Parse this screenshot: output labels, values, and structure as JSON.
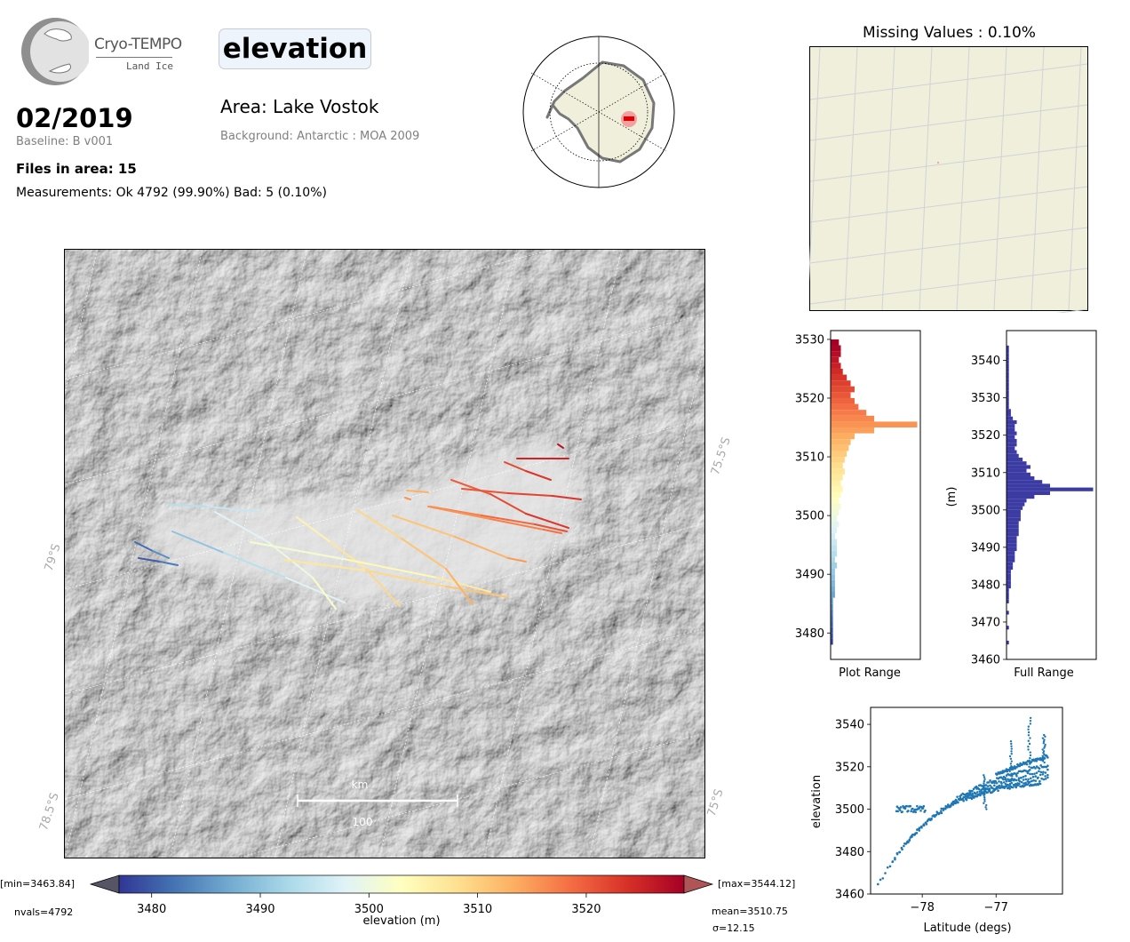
{
  "header": {
    "logo_name": "Cryo-TEMPO",
    "logo_sub": "Land Ice",
    "variable": "elevation",
    "date": "02/2019",
    "baseline": "Baseline: B v001",
    "files": "Files in area: 15",
    "measurements": "Measurements: Ok 4792 (99.90%) Bad: 5 (0.10%)",
    "area": "Area: Lake Vostok",
    "background": "Background: Antarctic : MOA 2009"
  },
  "colors": {
    "bar_hist": "#3b3ba3",
    "scatter": "#1f77b4",
    "land": "#efefdc",
    "grid": "#d0d0d0"
  },
  "chart_data": [
    {
      "type": "map",
      "name": "main-map",
      "lat_labels": [
        "79°S",
        "78.5°S"
      ],
      "lon_labels": [
        "75.5°S",
        "75°S"
      ],
      "scalebar": {
        "unit": "km",
        "length": "100"
      },
      "tracks_elevation_range": [
        3480,
        3528
      ]
    },
    {
      "type": "colorbar",
      "xlabel": "elevation (m)",
      "ticks": [
        3480,
        3490,
        3500,
        3510,
        3520
      ],
      "range": [
        3477,
        3529
      ],
      "min_label": "[min=3463.84]",
      "max_label": "[max=3544.12]",
      "nvals": "nvals=4792",
      "mean": "mean=3510.75",
      "sigma": "σ=12.15"
    },
    {
      "type": "map",
      "name": "missing-values",
      "title": "Missing Values : 0.10%"
    },
    {
      "type": "bar",
      "name": "plot-range-hist",
      "orientation": "horizontal",
      "xlabel": "Plot Range",
      "ylim": [
        3475.5,
        3531.5
      ],
      "yticks": [
        3480,
        3490,
        3500,
        3510,
        3520,
        3530
      ],
      "bin_width": 1,
      "bins_start": 3478,
      "counts": [
        1,
        1,
        1,
        1,
        1,
        1,
        1,
        1,
        2,
        2,
        2,
        2,
        2,
        3,
        2,
        3,
        3,
        3,
        2,
        3,
        4,
        3,
        4,
        5,
        4,
        5,
        6,
        5,
        6,
        7,
        6,
        7,
        8,
        9,
        10,
        12,
        22,
        44,
        22,
        18,
        14,
        12,
        10,
        12,
        10,
        8,
        6,
        5,
        4,
        5,
        5,
        4
      ]
    },
    {
      "type": "bar",
      "name": "full-range-hist",
      "orientation": "horizontal",
      "xlabel": "Full Range",
      "ylabel": "(m)",
      "ylim": [
        3460,
        3548
      ],
      "yticks": [
        3460,
        3470,
        3480,
        3490,
        3500,
        3510,
        3520,
        3530,
        3540
      ],
      "bin_width": 1,
      "bins_start": 3464,
      "counts": [
        1,
        0,
        0,
        0,
        1,
        0,
        0,
        0,
        1,
        0,
        0,
        1,
        1,
        1,
        1,
        2,
        2,
        2,
        2,
        2,
        3,
        3,
        4,
        4,
        4,
        5,
        5,
        5,
        5,
        6,
        6,
        6,
        6,
        7,
        7,
        7,
        8,
        9,
        10,
        14,
        22,
        44,
        22,
        18,
        14,
        12,
        10,
        12,
        10,
        8,
        6,
        5,
        4,
        5,
        5,
        4,
        5,
        4,
        4,
        5,
        3,
        2,
        2,
        1,
        1,
        1,
        1,
        1,
        1,
        1,
        1,
        1,
        1,
        1,
        1,
        1,
        1,
        1,
        1,
        1
      ]
    },
    {
      "type": "scatter",
      "name": "latitude-elevation",
      "xlabel": "Latitude (degs)",
      "ylabel": "elevation",
      "xlim": [
        -78.7,
        -76.1
      ],
      "ylim": [
        3460,
        3548
      ],
      "xticks": [
        -78,
        -77
      ],
      "yticks": [
        3460,
        3480,
        3500,
        3520,
        3540
      ]
    }
  ]
}
